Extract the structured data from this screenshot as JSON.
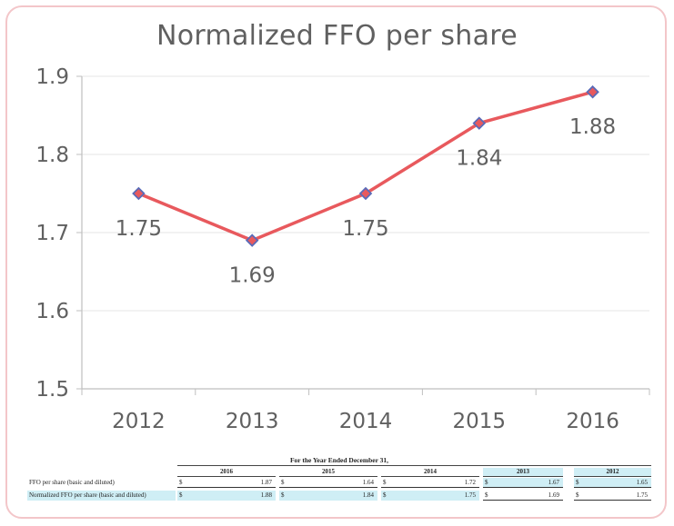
{
  "chart_data": {
    "type": "line",
    "title": "Normalized FFO per share",
    "xlabel": "",
    "ylabel": "",
    "categories": [
      "2012",
      "2013",
      "2014",
      "2015",
      "2016"
    ],
    "series": [
      {
        "values": [
          1.75,
          1.69,
          1.75,
          1.84,
          1.88
        ],
        "data_labels": [
          "1.75",
          "1.69",
          "1.75",
          "1.84",
          "1.88"
        ]
      }
    ],
    "ylim": [
      1.5,
      1.9
    ],
    "yticks": [
      "1.5",
      "1.6",
      "1.7",
      "1.8",
      "1.9"
    ],
    "grid": true,
    "legend": "none",
    "colors": {
      "line": "#e8595d",
      "marker_fill": "#e8595d",
      "marker_edge": "#5a6bb8",
      "grid": "#e6e6e6",
      "axis": "#bfbfbf",
      "text": "#606060"
    }
  },
  "table": {
    "header": "For the Year Ended December 31,",
    "years": [
      "2016",
      "2015",
      "2014",
      "2013",
      "2012"
    ],
    "rows": [
      {
        "label": "FFO per share (basic and diluted)",
        "cells": [
          {
            "dollar": "$",
            "value": "1.87"
          },
          {
            "dollar": "$",
            "value": "1.64"
          },
          {
            "dollar": "$",
            "value": "1.72"
          },
          {
            "dollar": "$",
            "value": "1.67"
          },
          {
            "dollar": "$",
            "value": "1.65"
          }
        ]
      },
      {
        "label": "Normalized FFO per share (basic and diluted)",
        "cells": [
          {
            "dollar": "$",
            "value": "1.88"
          },
          {
            "dollar": "$",
            "value": "1.84"
          },
          {
            "dollar": "$",
            "value": "1.75"
          },
          {
            "dollar": "$",
            "value": "1.69"
          },
          {
            "dollar": "$",
            "value": "1.75"
          }
        ]
      }
    ]
  }
}
